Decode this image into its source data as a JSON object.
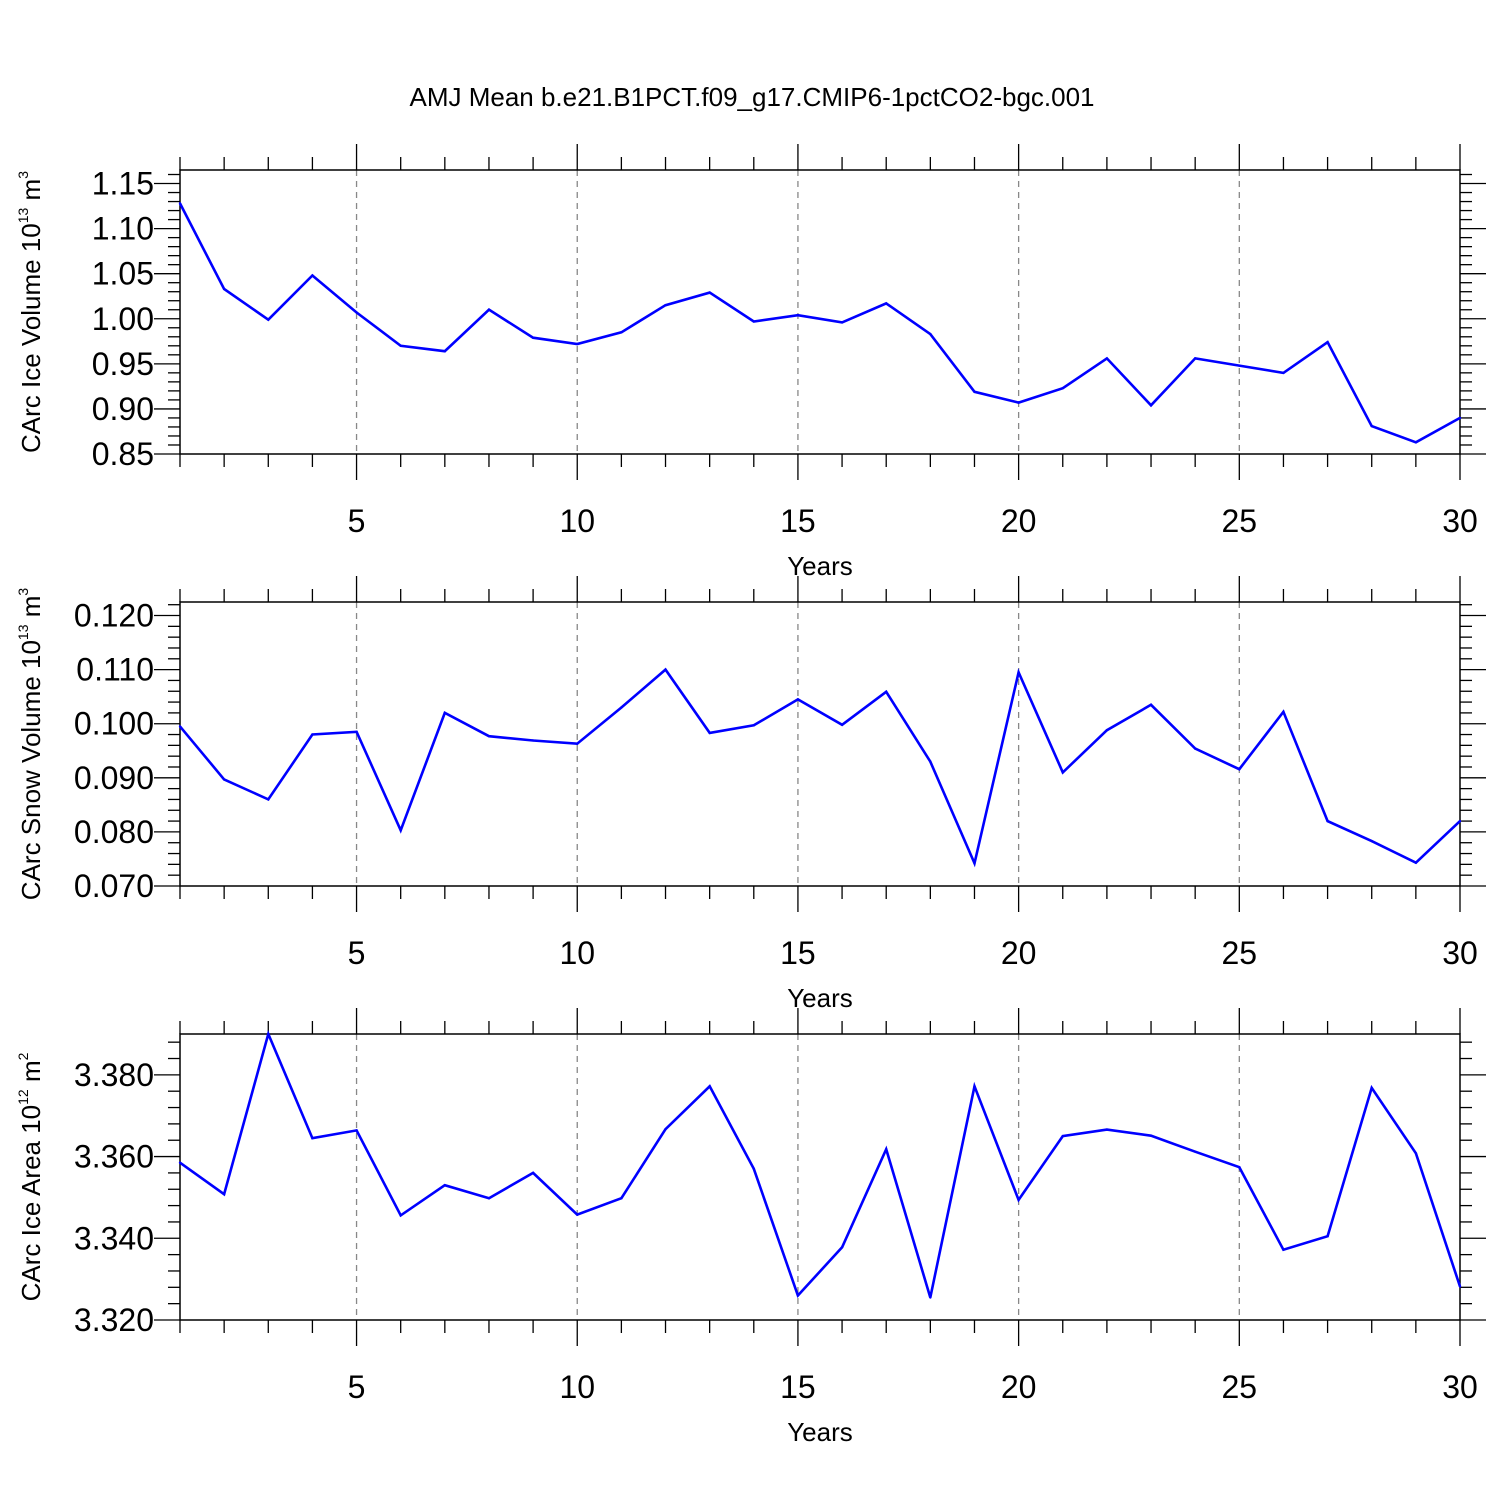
{
  "figure": {
    "title": "AMJ Mean b.e21.B1PCT.f09_g17.CMIP6-1pctCO2-bgc.001"
  },
  "chart_data": [
    {
      "type": "line",
      "xlabel": "Years",
      "ylabel": {
        "main": "CArc Ice Volume 10",
        "exponent": "13",
        "unit": " m",
        "unit_exponent": "3"
      },
      "xlim": [
        1,
        30
      ],
      "ylim": [
        0.85,
        1.165
      ],
      "x_ticks": [
        5,
        10,
        15,
        20,
        25,
        30
      ],
      "x_tick_labels": [
        "5",
        "10",
        "15",
        "20",
        "25",
        "30"
      ],
      "y_ticks": [
        0.85,
        0.9,
        0.95,
        1.0,
        1.05,
        1.1,
        1.15
      ],
      "y_tick_labels": [
        "0.85",
        "0.90",
        "0.95",
        "1.00",
        "1.05",
        "1.10",
        "1.15"
      ],
      "grid": "vertical dashed at major x ticks",
      "line_color": "#0000ff",
      "x": [
        1,
        2,
        3,
        4,
        5,
        6,
        7,
        8,
        9,
        10,
        11,
        12,
        13,
        14,
        15,
        16,
        17,
        18,
        19,
        20,
        21,
        22,
        23,
        24,
        25,
        26,
        27,
        28,
        29,
        30
      ],
      "values": [
        1.128,
        1.033,
        0.999,
        1.048,
        1.007,
        0.97,
        0.964,
        1.01,
        0.979,
        0.972,
        0.985,
        1.015,
        1.029,
        0.997,
        1.004,
        0.996,
        1.017,
        0.983,
        0.919,
        0.907,
        0.923,
        0.956,
        0.904,
        0.956,
        0.948,
        0.94,
        0.974,
        0.881,
        0.863,
        0.89
      ]
    },
    {
      "type": "line",
      "xlabel": "Years",
      "ylabel": {
        "main": "CArc Snow Volume 10",
        "exponent": "13",
        "unit": " m",
        "unit_exponent": "3"
      },
      "xlim": [
        1,
        30
      ],
      "ylim": [
        0.07,
        0.1225
      ],
      "x_ticks": [
        5,
        10,
        15,
        20,
        25,
        30
      ],
      "x_tick_labels": [
        "5",
        "10",
        "15",
        "20",
        "25",
        "30"
      ],
      "y_ticks": [
        0.07,
        0.08,
        0.09,
        0.1,
        0.11,
        0.12
      ],
      "y_tick_labels": [
        "0.070",
        "0.080",
        "0.090",
        "0.100",
        "0.110",
        "0.120"
      ],
      "grid": "vertical dashed at major x ticks",
      "line_color": "#0000ff",
      "x": [
        1,
        2,
        3,
        4,
        5,
        6,
        7,
        8,
        9,
        10,
        11,
        12,
        13,
        14,
        15,
        16,
        17,
        18,
        19,
        20,
        21,
        22,
        23,
        24,
        25,
        26,
        27,
        28,
        29,
        30
      ],
      "values": [
        0.0995,
        0.0897,
        0.086,
        0.098,
        0.0985,
        0.0803,
        0.102,
        0.0977,
        0.0969,
        0.0963,
        0.103,
        0.11,
        0.0983,
        0.0997,
        0.1045,
        0.0998,
        0.1059,
        0.093,
        0.0742,
        0.1095,
        0.091,
        0.0988,
        0.1035,
        0.0954,
        0.0916,
        0.1022,
        0.082,
        0.0783,
        0.0743,
        0.082
      ]
    },
    {
      "type": "line",
      "xlabel": "Years",
      "ylabel": {
        "main": "CArc Ice Area 10",
        "exponent": "12",
        "unit": " m",
        "unit_exponent": "2"
      },
      "xlim": [
        1,
        30
      ],
      "ylim": [
        3.32,
        3.39
      ],
      "x_ticks": [
        5,
        10,
        15,
        20,
        25,
        30
      ],
      "x_tick_labels": [
        "5",
        "10",
        "15",
        "20",
        "25",
        "30"
      ],
      "y_ticks": [
        3.32,
        3.34,
        3.36,
        3.38
      ],
      "y_tick_labels": [
        "3.320",
        "3.340",
        "3.360",
        "3.380"
      ],
      "grid": "vertical dashed at major x ticks",
      "line_color": "#0000ff",
      "x": [
        1,
        2,
        3,
        4,
        5,
        6,
        7,
        8,
        9,
        10,
        11,
        12,
        13,
        14,
        15,
        16,
        17,
        18,
        19,
        20,
        21,
        22,
        23,
        24,
        25,
        26,
        27,
        28,
        29,
        30
      ],
      "values": [
        3.3585,
        3.3508,
        3.39,
        3.3645,
        3.3664,
        3.3456,
        3.353,
        3.3498,
        3.356,
        3.3458,
        3.3498,
        3.3667,
        3.3772,
        3.357,
        3.326,
        3.3378,
        3.3618,
        3.3255,
        3.3772,
        3.3494,
        3.365,
        3.3666,
        3.3651,
        3.3612,
        3.3574,
        3.3372,
        3.3405,
        3.3768,
        3.3608,
        3.3282
      ]
    }
  ]
}
